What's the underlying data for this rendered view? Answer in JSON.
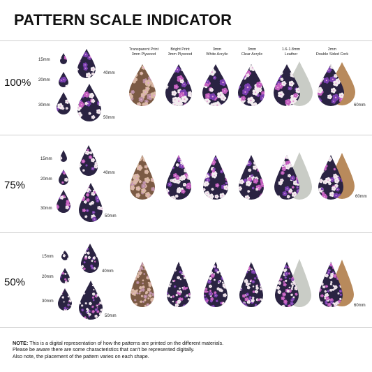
{
  "title": "PATTERN SCALE INDICATOR",
  "scales": [
    "100%",
    "75%",
    "50%"
  ],
  "sizes": {
    "s15": "15mm",
    "s20": "20mm",
    "s30": "30mm",
    "s40": "40mm",
    "s50": "50mm",
    "s60": "60mm"
  },
  "materials": [
    {
      "line1": "Transparent Print",
      "line2": "3mm Plywood"
    },
    {
      "line1": "Bright Print",
      "line2": "3mm Plywood"
    },
    {
      "line1": "3mm",
      "line2": "White Acrylic"
    },
    {
      "line1": "3mm",
      "line2": "Clear Acrylic"
    },
    {
      "line1": "1.6-1.8mm",
      "line2": "Leather"
    },
    {
      "line1": "2mm",
      "line2": "Double Sided Cork"
    }
  ],
  "note": {
    "label": "NOTE:",
    "line1": " This is a digital representation of how the patterns are printed on the different materials.",
    "line2": "Please be aware there are some characteristics that can't be represented digitally.",
    "line3": "Also note, the placement of the pattern varies on each shape."
  },
  "colors": {
    "navy": "#2a2342",
    "plywood": "#7b5a44",
    "cork": "#b88a5c",
    "leather_grey": "#c9ccc6",
    "blossom_white": "#f3ecef",
    "blossom_pink": "#c45fc0",
    "blossom_purple": "#7a3fb0",
    "plywood_blossom": "#d9b8a4"
  }
}
